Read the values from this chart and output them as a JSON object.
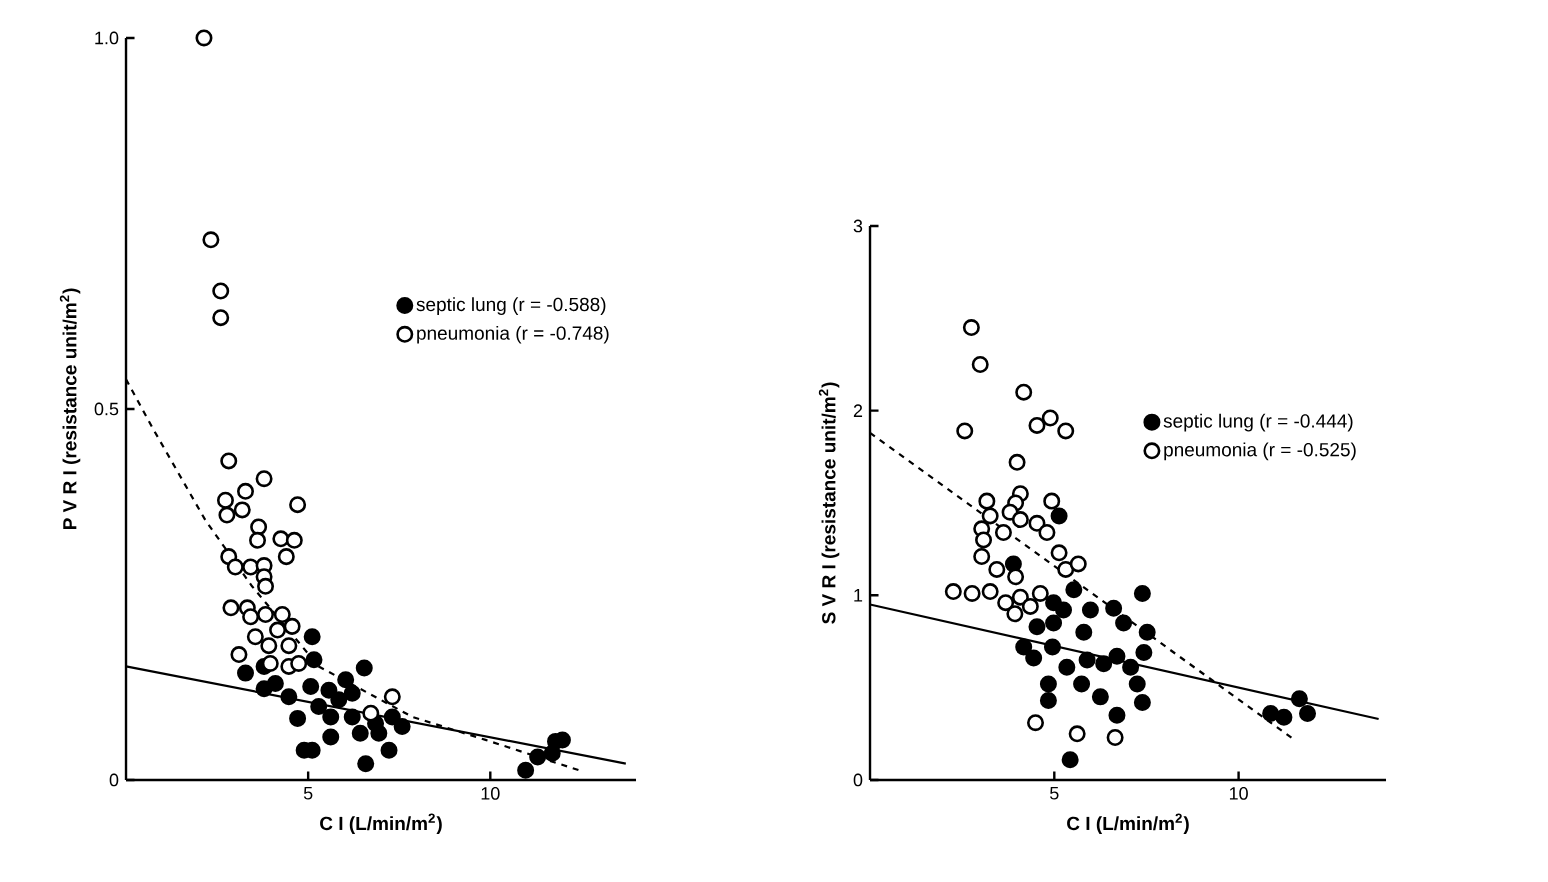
{
  "chart_data": [
    {
      "type": "scatter",
      "xlabel": "C I (L/min/m$^{2}$)",
      "ylabel": "P V R I (resistance unit/m$^{2}$)",
      "xlim": [
        0,
        14
      ],
      "ylim": [
        0,
        1.0
      ],
      "xticks": [
        5,
        10
      ],
      "yticks": [
        0,
        0.5,
        {
          "value": 1.0,
          "label": "1.0"
        }
      ],
      "legend": "right",
      "series": [
        {
          "name": "septic lung (r = -0.588)",
          "color": "#000000",
          "marker": "circle",
          "x": [
            5.11,
            5.16,
            3.28,
            3.79,
            3.79,
            4.1,
            4.47,
            4.71,
            5.07,
            5.29,
            5.57,
            5.84,
            6.03,
            6.54,
            6.21,
            5.62,
            5.62,
            4.89,
            5.11,
            6.58,
            6.43,
            6.94,
            7.22,
            7.31,
            7.58,
            10.97,
            11.3,
            11.7,
            11.79,
            11.98,
            6.85,
            6.21
          ],
          "values": [
            0.193,
            0.162,
            0.144,
            0.153,
            0.123,
            0.13,
            0.112,
            0.083,
            0.126,
            0.099,
            0.121,
            0.108,
            0.135,
            0.151,
            0.085,
            0.085,
            0.058,
            0.04,
            0.04,
            0.022,
            0.063,
            0.063,
            0.04,
            0.085,
            0.072,
            0.013,
            0.031,
            0.036,
            0.052,
            0.054,
            0.076,
            0.117
          ]
        },
        {
          "name": "pneumonia (r = -0.748)",
          "color": "#ffffff",
          "marker": "circle",
          "x": [
            2.14,
            2.33,
            2.6,
            2.6,
            2.82,
            2.73,
            3.28,
            3.79,
            2.77,
            3.19,
            4.71,
            3.64,
            3.61,
            4.25,
            4.62,
            4.4,
            2.82,
            3.0,
            3.42,
            3.79,
            3.79,
            3.83,
            2.88,
            3.33,
            3.42,
            3.83,
            4.29,
            4.56,
            4.16,
            3.55,
            3.1,
            3.92,
            4.47,
            3.96,
            4.47,
            4.74,
            7.31,
            6.72
          ],
          "values": [
            1.0,
            0.728,
            0.659,
            0.623,
            0.43,
            0.377,
            0.389,
            0.406,
            0.357,
            0.364,
            0.371,
            0.341,
            0.323,
            0.325,
            0.323,
            0.301,
            0.301,
            0.287,
            0.287,
            0.289,
            0.274,
            0.261,
            0.232,
            0.232,
            0.22,
            0.223,
            0.223,
            0.207,
            0.202,
            0.193,
            0.169,
            0.181,
            0.181,
            0.157,
            0.153,
            0.157,
            0.112,
            0.09
          ]
        },
        {
          "type": "line",
          "color": "#000000",
          "line_style": "solid",
          "marker": "none",
          "x": [
            0,
            13.72
          ],
          "values": [
            0.153,
            0.022
          ]
        },
        {
          "type": "line",
          "color": "#000000",
          "line_style": "dashed",
          "marker": "none",
          "x": [
            0,
            0.71,
            2.18,
            3.46,
            5.29,
            7.86,
            9.87,
            12.44
          ],
          "values": [
            0.54,
            0.476,
            0.35,
            0.261,
            0.153,
            0.085,
            0.054,
            0.013
          ]
        }
      ]
    },
    {
      "type": "scatter",
      "xlabel": "C I (L/min/m$^{2}$)",
      "ylabel": "S V R I (resistance unit/m$^{2}$)",
      "xlim": [
        0,
        14
      ],
      "ylim": [
        0,
        3
      ],
      "xticks": [
        5,
        10
      ],
      "yticks": [
        0,
        1,
        2,
        3
      ],
      "legend": "right",
      "series": [
        {
          "name": "septic lung (r = -0.444)",
          "color": "#000000",
          "marker": "circle",
          "x": [
            3.89,
            5.13,
            5.53,
            4.98,
            5.25,
            4.53,
            4.98,
            5.98,
            6.61,
            7.39,
            6.88,
            7.52,
            5.8,
            4.17,
            4.44,
            4.95,
            5.34,
            5.89,
            6.34,
            6.7,
            7.07,
            7.43,
            4.84,
            5.74,
            6.25,
            4.84,
            7.25,
            7.39,
            6.7,
            5.43,
            10.87,
            11.23,
            11.65,
            11.87
          ],
          "values": [
            1.17,
            1.43,
            1.03,
            0.96,
            0.92,
            0.83,
            0.85,
            0.92,
            0.93,
            1.01,
            0.85,
            0.8,
            0.8,
            0.72,
            0.66,
            0.72,
            0.61,
            0.65,
            0.63,
            0.67,
            0.61,
            0.69,
            0.52,
            0.52,
            0.45,
            0.43,
            0.52,
            0.42,
            0.35,
            0.11,
            0.36,
            0.34,
            0.44,
            0.36
          ]
        },
        {
          "name": "pneumonia (r = -0.525)",
          "color": "#ffffff",
          "marker": "circle",
          "x": [
            2.75,
            2.99,
            4.17,
            2.57,
            4.53,
            4.89,
            5.31,
            3.99,
            3.17,
            3.26,
            4.08,
            3.95,
            3.8,
            4.93,
            3.03,
            3.08,
            3.62,
            4.08,
            4.53,
            4.8,
            5.13,
            3.03,
            3.44,
            5.31,
            5.65,
            3.95,
            2.26,
            2.77,
            3.26,
            3.68,
            3.93,
            4.08,
            4.35,
            4.62,
            4.49,
            5.62,
            6.65
          ],
          "values": [
            2.45,
            2.25,
            2.1,
            1.89,
            1.92,
            1.96,
            1.89,
            1.72,
            1.51,
            1.43,
            1.55,
            1.5,
            1.45,
            1.51,
            1.36,
            1.3,
            1.34,
            1.41,
            1.39,
            1.34,
            1.23,
            1.21,
            1.14,
            1.14,
            1.17,
            1.1,
            1.02,
            1.01,
            1.02,
            0.96,
            0.9,
            0.99,
            0.94,
            1.01,
            0.31,
            0.25,
            0.23
          ]
        },
        {
          "type": "line",
          "color": "#000000",
          "line_style": "solid",
          "marker": "none",
          "x": [
            0,
            13.8
          ],
          "values": [
            0.95,
            0.33
          ]
        },
        {
          "type": "line",
          "color": "#000000",
          "line_style": "dashed",
          "marker": "none",
          "x": [
            0,
            11.5
          ],
          "values": [
            1.88,
            0.22
          ]
        }
      ]
    }
  ]
}
